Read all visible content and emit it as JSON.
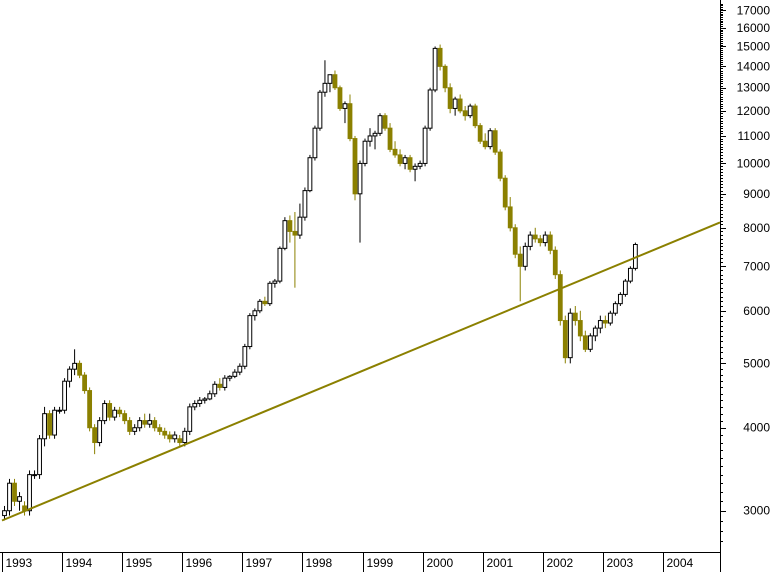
{
  "chart_data": {
    "type": "candlestick",
    "title": "",
    "xlabel": "",
    "ylabel": "",
    "y_scale": "log",
    "ylim": [
      2600,
      17500
    ],
    "y_ticks": [
      3000,
      4000,
      5000,
      6000,
      7000,
      8000,
      9000,
      10000,
      11000,
      12000,
      13000,
      14000,
      15000,
      16000,
      17000
    ],
    "x_range": [
      1993.0,
      2004.95
    ],
    "x_ticks": [
      "1993",
      "1994",
      "1995",
      "1996",
      "1997",
      "1998",
      "1999",
      "2000",
      "2001",
      "2002",
      "2003",
      "2004"
    ],
    "x_tick_positions": [
      1993,
      1994,
      1995,
      1996,
      1997,
      1998,
      1999,
      2000,
      2001,
      2002,
      2003,
      2004
    ],
    "grid": false,
    "colors": {
      "up_fill": "#ffffff",
      "up_outline": "#000000",
      "down_fill": "#8b8000",
      "trendline": "#8b8000",
      "axis": "#000000"
    },
    "candle_fields": [
      "open",
      "high",
      "low",
      "close"
    ],
    "candles": [
      [
        2950,
        3050,
        2900,
        3000
      ],
      [
        3000,
        3350,
        2950,
        3300
      ],
      [
        3300,
        3350,
        3050,
        3100
      ],
      [
        3100,
        3200,
        3000,
        3150
      ],
      [
        3050,
        3100,
        2950,
        3000
      ],
      [
        3000,
        3450,
        2950,
        3400
      ],
      [
        3400,
        3450,
        3350,
        3400
      ],
      [
        3400,
        3900,
        3350,
        3850
      ],
      [
        3850,
        4300,
        3750,
        4200
      ],
      [
        4200,
        4250,
        3850,
        3900
      ],
      [
        3900,
        4300,
        3850,
        4250
      ],
      [
        4250,
        4300,
        4200,
        4250
      ],
      [
        4250,
        4750,
        4200,
        4700
      ],
      [
        4700,
        4950,
        4600,
        4900
      ],
      [
        4900,
        5250,
        4800,
        5000
      ],
      [
        5000,
        5050,
        4750,
        4800
      ],
      [
        4800,
        4850,
        4500,
        4550
      ],
      [
        4550,
        4600,
        3950,
        4000
      ],
      [
        4000,
        4050,
        3650,
        3800
      ],
      [
        3800,
        4150,
        3750,
        4100
      ],
      [
        4100,
        4400,
        4050,
        4350
      ],
      [
        4350,
        4400,
        4100,
        4150
      ],
      [
        4150,
        4300,
        4100,
        4250
      ],
      [
        4250,
        4300,
        4150,
        4200
      ],
      [
        4200,
        4250,
        4050,
        4100
      ],
      [
        4100,
        4150,
        3900,
        3950
      ],
      [
        3950,
        4050,
        3900,
        4000
      ],
      [
        4000,
        4150,
        3950,
        4100
      ],
      [
        4100,
        4200,
        4000,
        4050
      ],
      [
        4050,
        4200,
        4000,
        4100
      ],
      [
        4100,
        4150,
        3950,
        4000
      ],
      [
        4000,
        4050,
        3900,
        3950
      ],
      [
        3950,
        4000,
        3850,
        3900
      ],
      [
        3900,
        3950,
        3800,
        3850
      ],
      [
        3850,
        3950,
        3800,
        3900
      ],
      [
        3850,
        3900,
        3750,
        3800
      ],
      [
        3800,
        4000,
        3750,
        3950
      ],
      [
        3950,
        4350,
        3900,
        4300
      ],
      [
        4300,
        4400,
        4250,
        4350
      ],
      [
        4350,
        4450,
        4300,
        4400
      ],
      [
        4400,
        4450,
        4350,
        4420
      ],
      [
        4420,
        4550,
        4400,
        4500
      ],
      [
        4500,
        4700,
        4450,
        4650
      ],
      [
        4650,
        4750,
        4550,
        4600
      ],
      [
        4600,
        4800,
        4550,
        4750
      ],
      [
        4750,
        4800,
        4700,
        4780
      ],
      [
        4780,
        4900,
        4750,
        4850
      ],
      [
        4850,
        5000,
        4800,
        4950
      ],
      [
        4950,
        5350,
        4900,
        5300
      ],
      [
        5300,
        5950,
        5250,
        5900
      ],
      [
        5900,
        6050,
        5800,
        6000
      ],
      [
        6000,
        6250,
        5950,
        6200
      ],
      [
        6200,
        6300,
        6100,
        6150
      ],
      [
        6150,
        6650,
        6100,
        6600
      ],
      [
        6600,
        6700,
        6500,
        6650
      ],
      [
        6650,
        7500,
        6600,
        7450
      ],
      [
        7450,
        8300,
        7400,
        8200
      ],
      [
        8200,
        8350,
        7600,
        7900
      ],
      [
        7900,
        8450,
        6500,
        7800
      ],
      [
        7800,
        8700,
        7700,
        8300
      ],
      [
        8300,
        9200,
        8200,
        9100
      ],
      [
        9100,
        10300,
        9050,
        10200
      ],
      [
        10200,
        11400,
        10100,
        11300
      ],
      [
        11300,
        12900,
        11200,
        12800
      ],
      [
        12800,
        14300,
        12600,
        13200
      ],
      [
        13200,
        13600,
        12800,
        13600
      ],
      [
        13600,
        13800,
        12900,
        13000
      ],
      [
        13000,
        13100,
        12000,
        12100
      ],
      [
        12100,
        12400,
        11500,
        12300
      ],
      [
        12300,
        12700,
        10800,
        10900
      ],
      [
        10900,
        11000,
        8800,
        9000
      ],
      [
        9000,
        10100,
        7600,
        10000
      ],
      [
        10000,
        10900,
        9900,
        10800
      ],
      [
        10800,
        11300,
        10600,
        11000
      ],
      [
        11000,
        11200,
        10500,
        11100
      ],
      [
        11100,
        11900,
        11000,
        11800
      ],
      [
        11800,
        11900,
        11200,
        11300
      ],
      [
        11300,
        11500,
        10400,
        10500
      ],
      [
        10500,
        10800,
        10200,
        10300
      ],
      [
        10300,
        10500,
        9900,
        10000
      ],
      [
        10000,
        10300,
        9800,
        10200
      ],
      [
        10200,
        10300,
        9700,
        9800
      ],
      [
        9800,
        10000,
        9400,
        9900
      ],
      [
        9900,
        10100,
        9800,
        10000
      ],
      [
        10000,
        11400,
        9900,
        11300
      ],
      [
        11300,
        13000,
        11200,
        12900
      ],
      [
        12900,
        15000,
        12800,
        14900
      ],
      [
        14900,
        15100,
        13800,
        14000
      ],
      [
        14000,
        14100,
        12800,
        13000
      ],
      [
        13000,
        13200,
        11900,
        12100
      ],
      [
        12100,
        12600,
        11800,
        12500
      ],
      [
        12500,
        12700,
        11900,
        12000
      ],
      [
        12000,
        12200,
        11600,
        11800
      ],
      [
        11800,
        12300,
        11700,
        12200
      ],
      [
        12200,
        12300,
        11300,
        11400
      ],
      [
        11400,
        11500,
        10700,
        10800
      ],
      [
        10800,
        11100,
        10500,
        10600
      ],
      [
        10600,
        11300,
        10500,
        11200
      ],
      [
        11200,
        11300,
        10300,
        10400
      ],
      [
        10400,
        10500,
        9400,
        9500
      ],
      [
        9500,
        9600,
        8500,
        8600
      ],
      [
        8600,
        8900,
        7900,
        8000
      ],
      [
        8000,
        8100,
        7200,
        7300
      ],
      [
        7300,
        7500,
        6200,
        7000
      ],
      [
        7000,
        7600,
        6900,
        7500
      ],
      [
        7500,
        7900,
        7400,
        7800
      ],
      [
        7800,
        8000,
        7600,
        7700
      ],
      [
        7700,
        7800,
        7500,
        7600
      ],
      [
        7600,
        7900,
        7500,
        7800
      ],
      [
        7800,
        7900,
        7300,
        7400
      ],
      [
        7400,
        7500,
        6700,
        6800
      ],
      [
        6800,
        6900,
        5700,
        5800
      ],
      [
        5800,
        5900,
        5000,
        5100
      ],
      [
        5100,
        6050,
        5000,
        5950
      ],
      [
        5950,
        6100,
        5700,
        5800
      ],
      [
        5800,
        6000,
        5400,
        5500
      ],
      [
        5500,
        5600,
        5200,
        5250
      ],
      [
        5250,
        5550,
        5200,
        5500
      ],
      [
        5500,
        5700,
        5400,
        5650
      ],
      [
        5650,
        5900,
        5550,
        5800
      ],
      [
        5800,
        5900,
        5650,
        5750
      ],
      [
        5750,
        6000,
        5700,
        5950
      ],
      [
        5950,
        6200,
        5900,
        6150
      ],
      [
        6150,
        6400,
        6100,
        6350
      ],
      [
        6350,
        6700,
        6300,
        6650
      ],
      [
        6650,
        7000,
        6600,
        6950
      ],
      [
        6950,
        7600,
        6900,
        7550
      ]
    ],
    "trendline": {
      "label": "",
      "points": [
        [
          1993.0,
          2900
        ],
        [
          2004.95,
          8150
        ]
      ]
    }
  }
}
